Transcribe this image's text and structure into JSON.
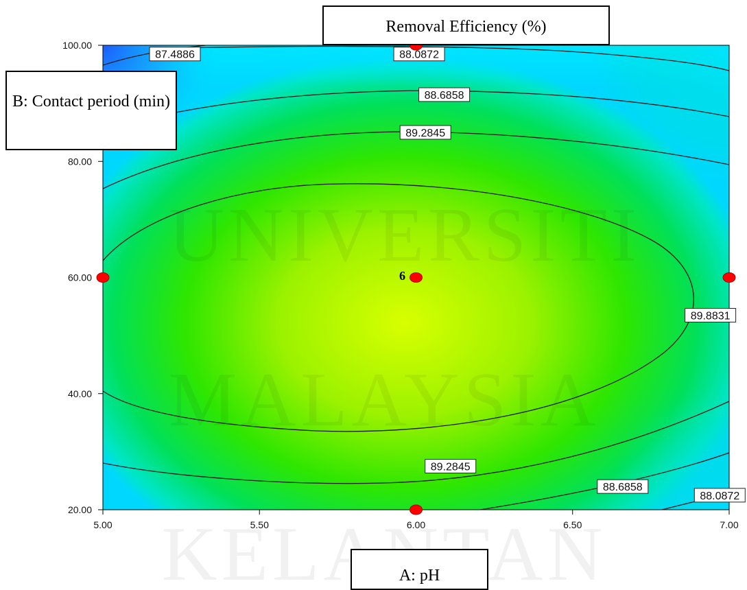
{
  "chart_data": {
    "type": "contour",
    "title": "Removal Efficiency (%)",
    "xlabel": "A: pH",
    "ylabel": "B: Contact period (min)",
    "xlim": [
      5.0,
      7.0
    ],
    "ylim": [
      20.0,
      100.0
    ],
    "x_ticks": [
      "5.00",
      "5.50",
      "6.00",
      "6.50",
      "7.00"
    ],
    "y_ticks": [
      "20.00",
      "40.00",
      "60.00",
      "80.00",
      "100.00"
    ],
    "contour_levels": [
      "87.4886",
      "88.0872",
      "88.6858",
      "89.2845",
      "89.8831"
    ],
    "contour_labels": [
      {
        "text": "87.4886",
        "x": 5.23,
        "y": 98.5
      },
      {
        "text": "88.0872",
        "x": 6.01,
        "y": 98.5
      },
      {
        "text": "88.6858",
        "x": 6.09,
        "y": 91.5
      },
      {
        "text": "89.2845",
        "x": 6.03,
        "y": 85.0
      },
      {
        "text": "89.8831",
        "x": 6.94,
        "y": 53.5
      },
      {
        "text": "89.2845",
        "x": 6.11,
        "y": 27.5
      },
      {
        "text": "88.6858",
        "x": 6.66,
        "y": 24.0
      },
      {
        "text": "88.0872",
        "x": 6.97,
        "y": 22.5
      }
    ],
    "design_points": [
      {
        "x": 5.0,
        "y": 60.0
      },
      {
        "x": 6.0,
        "y": 60.0
      },
      {
        "x": 7.0,
        "y": 60.0
      },
      {
        "x": 6.0,
        "y": 100.0
      },
      {
        "x": 6.0,
        "y": 20.0
      }
    ],
    "center_point_count": "6",
    "colormap": [
      "#1a5cff",
      "#00d7ff",
      "#00e000",
      "#d8ff00"
    ],
    "grid": false
  },
  "watermark": [
    "UNIVERSITI",
    "MALAYSIA",
    "KELANTAN"
  ]
}
